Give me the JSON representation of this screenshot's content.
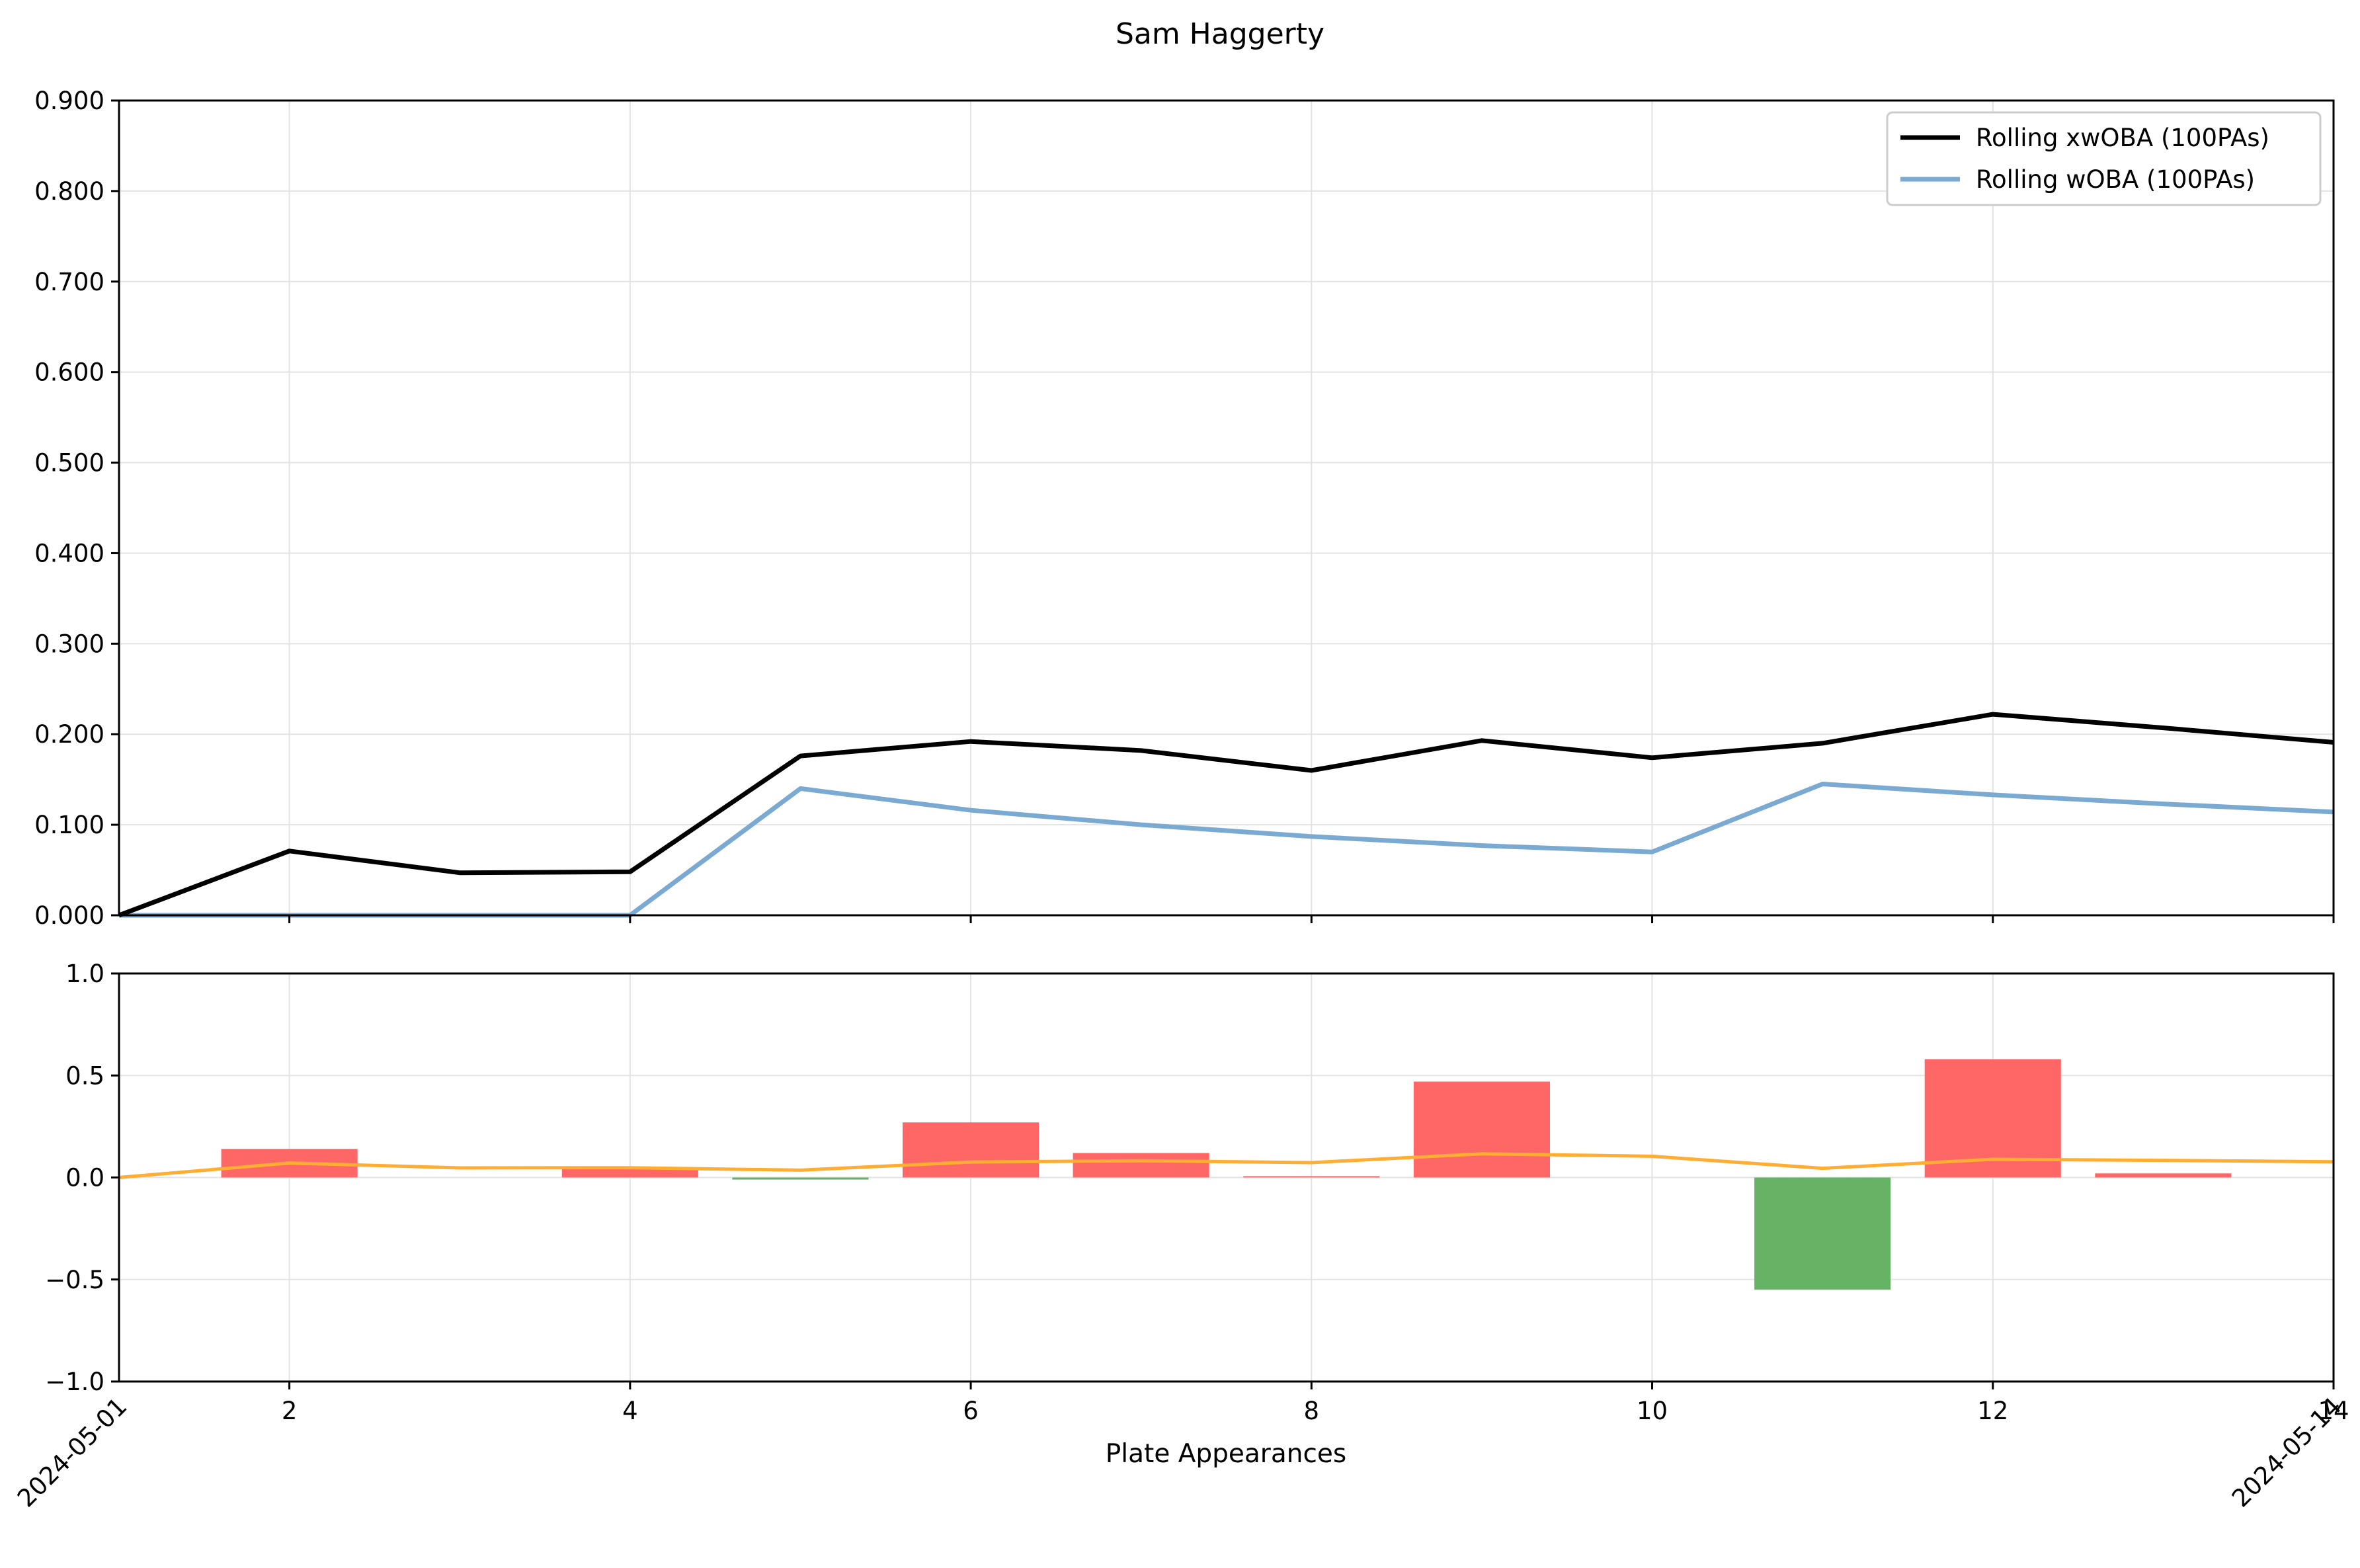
{
  "chart_data": [
    {
      "type": "line",
      "title": "Sam Haggerty",
      "x": [
        1,
        2,
        3,
        4,
        5,
        6,
        7,
        8,
        9,
        10,
        11,
        12,
        13,
        14
      ],
      "xlim": [
        1,
        14
      ],
      "ylim": [
        0,
        0.9
      ],
      "yticks": [
        "0.000",
        "0.100",
        "0.200",
        "0.300",
        "0.400",
        "0.500",
        "0.600",
        "0.700",
        "0.800",
        "0.900"
      ],
      "ytick_values": [
        0,
        0.1,
        0.2,
        0.3,
        0.4,
        0.5,
        0.6,
        0.7,
        0.8,
        0.9
      ],
      "xtick_values": [
        2,
        4,
        6,
        8,
        10,
        12,
        14
      ],
      "grid": true,
      "legend_position": "top-right",
      "series": [
        {
          "name": "Rolling xwOBA (100PAs)",
          "color": "#000000",
          "values": [
            0.0,
            0.071,
            0.047,
            0.048,
            0.176,
            0.192,
            0.182,
            0.16,
            0.193,
            0.174,
            0.19,
            0.222,
            0.207,
            0.191
          ]
        },
        {
          "name": "Rolling wOBA (100PAs)",
          "color": "#7aa9d1",
          "values": [
            0.0,
            0.0,
            0.0,
            0.0,
            0.14,
            0.116,
            0.1,
            0.087,
            0.077,
            0.07,
            0.145,
            0.133,
            0.123,
            0.114
          ]
        }
      ]
    },
    {
      "type": "bar",
      "xlabel": "Plate Appearances",
      "x": [
        2,
        3,
        4,
        5,
        6,
        7,
        8,
        9,
        10,
        11,
        12,
        13
      ],
      "values": [
        0.14,
        0.0,
        0.05,
        -0.01,
        0.27,
        0.12,
        0.005,
        0.47,
        0.0,
        -0.55,
        0.58,
        0.02
      ],
      "positive_color": "#ff6666",
      "negative_color": "#66b366",
      "xlim": [
        1,
        14
      ],
      "ylim": [
        -1,
        1
      ],
      "yticks": [
        "1.0",
        "0.5",
        "0.0",
        "−0.5",
        "−1.0"
      ],
      "ytick_values": [
        1.0,
        0.5,
        0.0,
        -0.5,
        -1.0
      ],
      "xticks": [
        "2",
        "4",
        "6",
        "8",
        "10",
        "12",
        "14"
      ],
      "xtick_values": [
        2,
        4,
        6,
        8,
        10,
        12,
        14
      ],
      "date_ticks": [
        {
          "x": 1,
          "label": "2024-05-01"
        },
        {
          "x": 14,
          "label": "2024-05-14"
        }
      ],
      "line": {
        "color": "#ffad33",
        "x": [
          1,
          2,
          3,
          4,
          5,
          6,
          7,
          8,
          9,
          10,
          11,
          12,
          13,
          14
        ],
        "values": [
          0.0,
          0.071,
          0.047,
          0.048,
          0.036,
          0.076,
          0.082,
          0.073,
          0.116,
          0.104,
          0.045,
          0.089,
          0.084,
          0.077
        ]
      },
      "grid": true
    }
  ]
}
